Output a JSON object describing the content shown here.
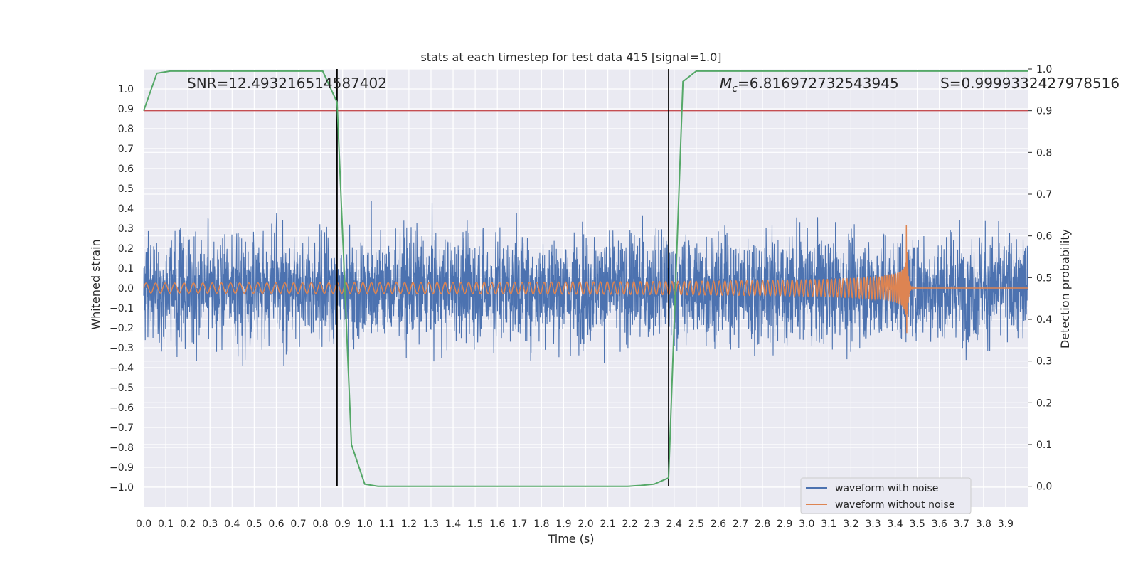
{
  "chart_data": {
    "type": "line",
    "title": "stats at each timestep for test data 415 [signal=1.0]",
    "xlabel": "Time (s)",
    "ylabel": "Whitened strain",
    "y2label": "Detection probability",
    "xlim": [
      0.0,
      4.0
    ],
    "ylim": [
      -1.1,
      1.1
    ],
    "y2lim": [
      -0.05,
      1.0
    ],
    "grid": true,
    "legend_placement": "lower-right",
    "x_ticks": [
      "0.0",
      "0.1",
      "0.2",
      "0.3",
      "0.4",
      "0.5",
      "0.6",
      "0.7",
      "0.8",
      "0.9",
      "1.0",
      "1.1",
      "1.2",
      "1.3",
      "1.4",
      "1.5",
      "1.6",
      "1.7",
      "1.8",
      "1.9",
      "2.0",
      "2.1",
      "2.2",
      "2.3",
      "2.4",
      "2.5",
      "2.6",
      "2.7",
      "2.8",
      "2.9",
      "3.0",
      "3.1",
      "3.2",
      "3.3",
      "3.4",
      "3.5",
      "3.6",
      "3.7",
      "3.8",
      "3.9"
    ],
    "y_ticks": [
      "1.0",
      "0.9",
      "0.8",
      "0.7",
      "0.6",
      "0.5",
      "0.4",
      "0.3",
      "0.2",
      "0.1",
      "0.0",
      "−0.1",
      "−0.2",
      "−0.3",
      "−0.4",
      "−0.5",
      "−0.6",
      "−0.7",
      "−0.8",
      "−0.9",
      "−1.0"
    ],
    "y2_ticks": [
      "1.0",
      "0.9",
      "0.8",
      "0.7",
      "0.6",
      "0.5",
      "0.4",
      "0.3",
      "0.2",
      "0.1",
      "0.0"
    ],
    "annotations": {
      "snr": "SNR=12.493216514587402",
      "mc_symbol": "M",
      "mc_sub": "c",
      "mc_value": "=6.816972732543945",
      "s": "S=0.9999332427978516"
    },
    "threshold": {
      "y2": 0.9,
      "color": "#c44e52"
    },
    "vlines": [
      0.875,
      2.375
    ],
    "series": [
      {
        "name": "waveform with noise",
        "color": "#4c72b0",
        "amplitude_envelope": 0.45,
        "peak_range": [
          -0.98,
          0.98
        ]
      },
      {
        "name": "waveform without noise",
        "color": "#dd8452",
        "start_amplitude": 0.025,
        "peak_amplitude": 0.37,
        "merger_time": 3.45
      },
      {
        "name": "detection probability",
        "color": "#55a868",
        "axis": "right",
        "x": [
          0.0,
          0.06,
          0.12,
          0.19,
          0.25,
          0.31,
          0.38,
          0.44,
          0.5,
          0.56,
          0.62,
          0.69,
          0.75,
          0.81,
          0.875,
          0.94,
          1.0,
          1.06,
          1.12,
          1.19,
          1.25,
          1.31,
          1.38,
          1.44,
          1.5,
          1.56,
          1.62,
          1.69,
          1.75,
          1.81,
          1.88,
          1.94,
          2.0,
          2.06,
          2.12,
          2.19,
          2.25,
          2.31,
          2.375,
          2.44,
          2.5,
          2.56,
          2.62,
          2.69,
          2.75,
          2.81,
          2.88,
          2.94,
          3.0,
          3.06,
          3.12,
          3.19,
          3.25,
          3.31,
          3.38,
          3.44,
          3.5,
          3.56,
          3.62,
          3.69,
          3.75,
          3.81,
          3.88,
          3.94,
          4.0
        ],
        "y": [
          0.9,
          0.99,
          0.995,
          0.995,
          0.995,
          0.995,
          0.995,
          0.995,
          0.995,
          0.995,
          0.995,
          0.995,
          0.995,
          0.995,
          0.92,
          0.1,
          0.005,
          0.0,
          0.0,
          0.0,
          0.0,
          0.0,
          0.0,
          0.0,
          0.0,
          0.0,
          0.0,
          0.0,
          0.0,
          0.0,
          0.0,
          0.0,
          0.0,
          0.0,
          0.0,
          0.0,
          0.002,
          0.005,
          0.02,
          0.97,
          0.995,
          0.995,
          0.995,
          0.995,
          0.995,
          0.995,
          0.995,
          0.995,
          0.995,
          0.995,
          0.995,
          0.995,
          0.995,
          0.995,
          0.995,
          0.995,
          0.995,
          0.995,
          0.995,
          0.995,
          0.995,
          0.995,
          0.995,
          0.995,
          0.995
        ]
      }
    ]
  }
}
